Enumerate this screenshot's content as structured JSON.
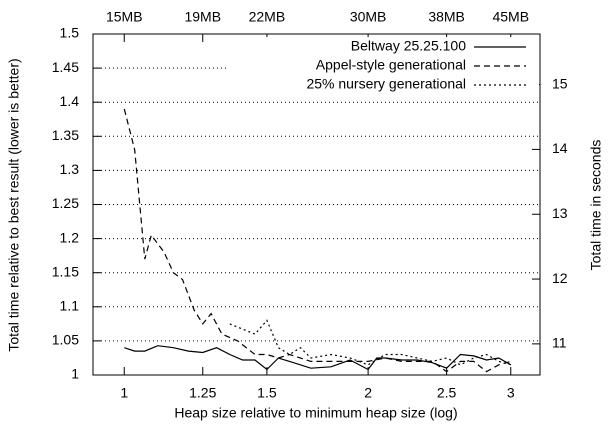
{
  "chart_data": {
    "type": "line",
    "xlabel": "Heap size relative to minimum heap size (log)",
    "ylabel": "Total time relative to best result (lower is better)",
    "y2label": "Total time in seconds",
    "xlog": true,
    "xlim": [
      0.915,
      3.26
    ],
    "xticks": [
      1,
      1.25,
      1.5,
      2,
      2.5,
      3
    ],
    "x2ticks": [
      {
        "value": 1,
        "label": "15MB"
      },
      {
        "value": 1.25,
        "label": "19MB"
      },
      {
        "value": 1.5,
        "label": "22MB"
      },
      {
        "value": 2,
        "label": "30MB"
      },
      {
        "value": 2.5,
        "label": "38MB"
      },
      {
        "value": 3,
        "label": "45MB"
      }
    ],
    "ylim": [
      1,
      1.5
    ],
    "yticks": [
      1,
      1.05,
      1.1,
      1.15,
      1.2,
      1.25,
      1.3,
      1.35,
      1.4,
      1.45,
      1.5
    ],
    "y2lim": [
      10.52,
      15.78
    ],
    "y2ticks": [
      11,
      12,
      13,
      14,
      15
    ],
    "grid": true,
    "legend": "top-right",
    "series": [
      {
        "name": "Beltway 25.25.100",
        "color": "#000000",
        "dash": "solid",
        "x": [
          1,
          1.03,
          1.06,
          1.1,
          1.15,
          1.2,
          1.25,
          1.3,
          1.35,
          1.4,
          1.45,
          1.5,
          1.55,
          1.6,
          1.7,
          1.8,
          1.9,
          2.0,
          2.05,
          2.1,
          2.2,
          2.3,
          2.4,
          2.5,
          2.6,
          2.7,
          2.8,
          2.9,
          3
        ],
        "values": [
          1.04,
          1.035,
          1.035,
          1.043,
          1.04,
          1.035,
          1.033,
          1.04,
          1.03,
          1.022,
          1.022,
          1.008,
          1.025,
          1.02,
          1.01,
          1.012,
          1.022,
          1.008,
          1.025,
          1.025,
          1.022,
          1.022,
          1.018,
          1.01,
          1.03,
          1.028,
          1.022,
          1.025,
          1.015
        ]
      },
      {
        "name": "Appel-style generational",
        "color": "#000000",
        "dash": "dashed",
        "x": [
          1,
          1.03,
          1.06,
          1.08,
          1.12,
          1.15,
          1.18,
          1.22,
          1.25,
          1.28,
          1.32,
          1.38,
          1.45,
          1.5,
          1.55,
          1.6,
          1.7,
          1.8,
          1.9,
          2.0,
          2.1,
          2.2,
          2.3,
          2.4,
          2.5,
          2.6,
          2.7,
          2.8,
          2.9,
          3
        ],
        "values": [
          1.39,
          1.33,
          1.17,
          1.205,
          1.18,
          1.15,
          1.14,
          1.095,
          1.075,
          1.09,
          1.06,
          1.05,
          1.03,
          1.03,
          1.025,
          1.03,
          1.02,
          1.02,
          1.02,
          1.02,
          1.025,
          1.02,
          1.02,
          1.02,
          1.005,
          1.02,
          1.02,
          1.005,
          1.015,
          1.02
        ]
      },
      {
        "name": "25% nursery generational",
        "color": "#000000",
        "dash": "dotted",
        "x": [
          1.35,
          1.45,
          1.5,
          1.55,
          1.6,
          1.65,
          1.7,
          1.8,
          1.9,
          2.0,
          2.1,
          2.2,
          2.3,
          2.4,
          2.5,
          2.6,
          2.7,
          2.8,
          2.9,
          3
        ],
        "values": [
          1.075,
          1.06,
          1.08,
          1.04,
          1.03,
          1.04,
          1.025,
          1.03,
          1.025,
          1.015,
          1.03,
          1.03,
          1.025,
          1.02,
          1.025,
          1.015,
          1.025,
          1.03,
          1.02,
          1.015
        ]
      }
    ]
  }
}
